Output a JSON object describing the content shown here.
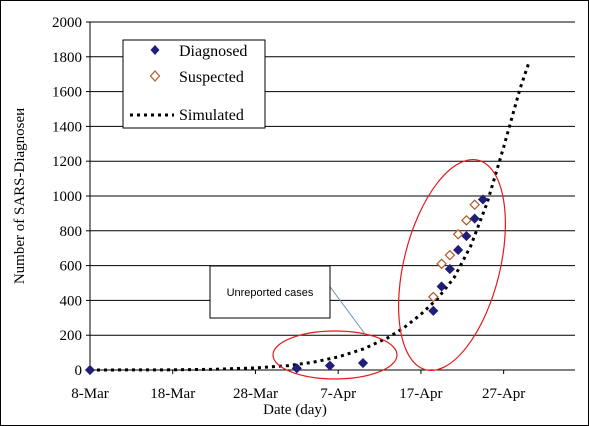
{
  "chart_data": {
    "type": "scatter",
    "title": "",
    "xlabel": "Date (day)",
    "ylabel": "Number of SARS-Diagnoseи",
    "xlim": [
      0,
      55
    ],
    "ylim": [
      0,
      2000
    ],
    "x_ticks": [
      {
        "pos": 0,
        "label": "8-Mar"
      },
      {
        "pos": 10,
        "label": "18-Mar"
      },
      {
        "pos": 20,
        "label": "28-Mar"
      },
      {
        "pos": 30,
        "label": "7-Apr"
      },
      {
        "pos": 40,
        "label": "17-Apr"
      },
      {
        "pos": 50,
        "label": "27-Apr"
      }
    ],
    "y_ticks": [
      0,
      200,
      400,
      600,
      800,
      1000,
      1200,
      1400,
      1600,
      1800,
      2000
    ],
    "grid": "horizontal",
    "legend_position": "top-left",
    "series": [
      {
        "name": "Diagnosed",
        "marker": "diamond-filled",
        "color": "#1f1f7a",
        "x": [
          0,
          25,
          29,
          33,
          41.5,
          42.5,
          43.5,
          44.5,
          45.5,
          46.5,
          47.5
        ],
        "y": [
          0,
          10,
          25,
          40,
          340,
          480,
          580,
          690,
          770,
          870,
          980
        ]
      },
      {
        "name": "Suspected",
        "marker": "diamond-open",
        "color": "#b05a2a",
        "x": [
          41.5,
          42.5,
          43.5,
          44.5,
          45.5,
          46.5
        ],
        "y": [
          420,
          610,
          660,
          780,
          860,
          950
        ]
      },
      {
        "name": "Simulated",
        "style": "dotted-line",
        "color": "#000000",
        "x": [
          0,
          10,
          15,
          20,
          24,
          27,
          30,
          33,
          36,
          38,
          40,
          42,
          44,
          46,
          48,
          50,
          52,
          53
        ],
        "y": [
          0,
          1,
          4,
          12,
          25,
          45,
          75,
          120,
          185,
          245,
          320,
          410,
          530,
          710,
          960,
          1280,
          1620,
          1760
        ]
      }
    ],
    "annotations": [
      {
        "text": "Unreported cases"
      }
    ]
  }
}
